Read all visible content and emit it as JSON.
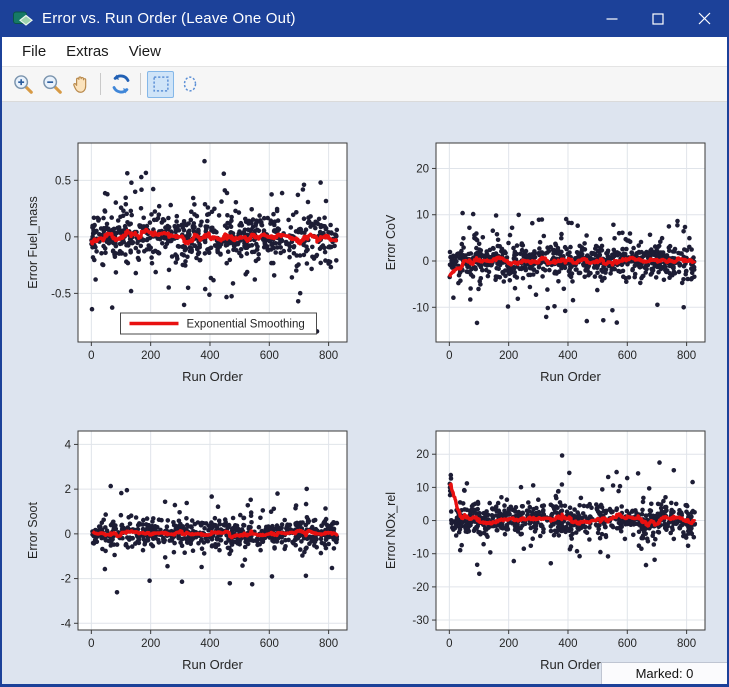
{
  "window": {
    "title": "Error vs. Run Order (Leave One Out)",
    "controls": {
      "minimize": "minimize-icon",
      "maximize": "maximize-icon",
      "close": "close-icon"
    }
  },
  "menubar": {
    "items": [
      "File",
      "Extras",
      "View"
    ]
  },
  "toolbar": {
    "buttons": [
      {
        "name": "zoom-in",
        "icon": "magnifier-plus-icon",
        "active": false
      },
      {
        "name": "zoom-out",
        "icon": "magnifier-minus-icon",
        "active": false
      },
      {
        "name": "pan",
        "icon": "hand-icon",
        "active": false
      },
      {
        "name": "refresh",
        "icon": "refresh-arrows-icon",
        "active": false
      },
      {
        "name": "rectangle-select",
        "icon": "dashed-rectangle-icon",
        "active": true
      },
      {
        "name": "ellipse-select",
        "icon": "dashed-ellipse-icon",
        "active": false
      }
    ]
  },
  "status": {
    "marked_label": "Marked: 0"
  },
  "colors": {
    "titlebar": "#1c4199",
    "window_bg": "#dde4ef",
    "marker": "#1d1d35",
    "smoothing_line": "#e81010",
    "grid": "#e0e4ea",
    "spine": "#3a3a3a",
    "tick_text": "#262626"
  },
  "chart_data": [
    {
      "type": "scatter",
      "ylabel": "Error Fuel_mass",
      "xlabel": "Run Order",
      "xticks": [
        0,
        200,
        400,
        600,
        800
      ],
      "yticks": [
        -0.5,
        0,
        0.5
      ],
      "xlim": [
        -45,
        862
      ],
      "ylim": [
        -0.93,
        0.83
      ],
      "x_data_max": 828,
      "legend_label": "Exponential Smoothing",
      "points": {
        "n": 720,
        "seed": 11,
        "core_sigma": 0.1,
        "tail_sigma": 0.3,
        "tail_frac": 0.2,
        "clip": [
          -0.87,
          0.79
        ],
        "head_high": false
      },
      "smoothing": {
        "alpha": 0.045
      }
    },
    {
      "type": "scatter",
      "ylabel": "Error CoV",
      "xlabel": "Run Order",
      "xticks": [
        0,
        200,
        400,
        600,
        800
      ],
      "yticks": [
        -10,
        0,
        10,
        20
      ],
      "xlim": [
        -45,
        862
      ],
      "ylim": [
        -17.5,
        25.5
      ],
      "x_data_max": 828,
      "legend_label": null,
      "points": {
        "n": 780,
        "seed": 22,
        "core_sigma": 1.7,
        "tail_sigma": 5.8,
        "tail_frac": 0.17,
        "clip": [
          -16.2,
          23.8
        ],
        "head_high": false
      },
      "smoothing": {
        "alpha": 0.045
      }
    },
    {
      "type": "scatter",
      "ylabel": "Error Soot",
      "xlabel": "Run Order",
      "xticks": [
        0,
        200,
        400,
        600,
        800
      ],
      "yticks": [
        -4,
        -2,
        0,
        2,
        4
      ],
      "xlim": [
        -45,
        862
      ],
      "ylim": [
        -4.3,
        4.6
      ],
      "x_data_max": 828,
      "legend_label": null,
      "points": {
        "n": 700,
        "seed": 33,
        "core_sigma": 0.3,
        "tail_sigma": 1.05,
        "tail_frac": 0.16,
        "clip": [
          -3.85,
          4.35
        ],
        "head_high": false
      },
      "smoothing": {
        "alpha": 0.045
      }
    },
    {
      "type": "scatter",
      "ylabel": "Error NOx_rel",
      "xlabel": "Run Order",
      "xticks": [
        0,
        200,
        400,
        600,
        800
      ],
      "yticks": [
        -30,
        -20,
        -10,
        0,
        10,
        20
      ],
      "xlim": [
        -45,
        862
      ],
      "ylim": [
        -33,
        27
      ],
      "x_data_max": 828,
      "legend_label": null,
      "points": {
        "n": 780,
        "seed": 44,
        "core_sigma": 2.3,
        "tail_sigma": 6.8,
        "tail_frac": 0.18,
        "clip": [
          -30.6,
          24.6
        ],
        "head_high": true,
        "head_n": 7,
        "head_min": 7,
        "head_span": 7.5
      },
      "smoothing": {
        "alpha": 0.05
      }
    }
  ]
}
